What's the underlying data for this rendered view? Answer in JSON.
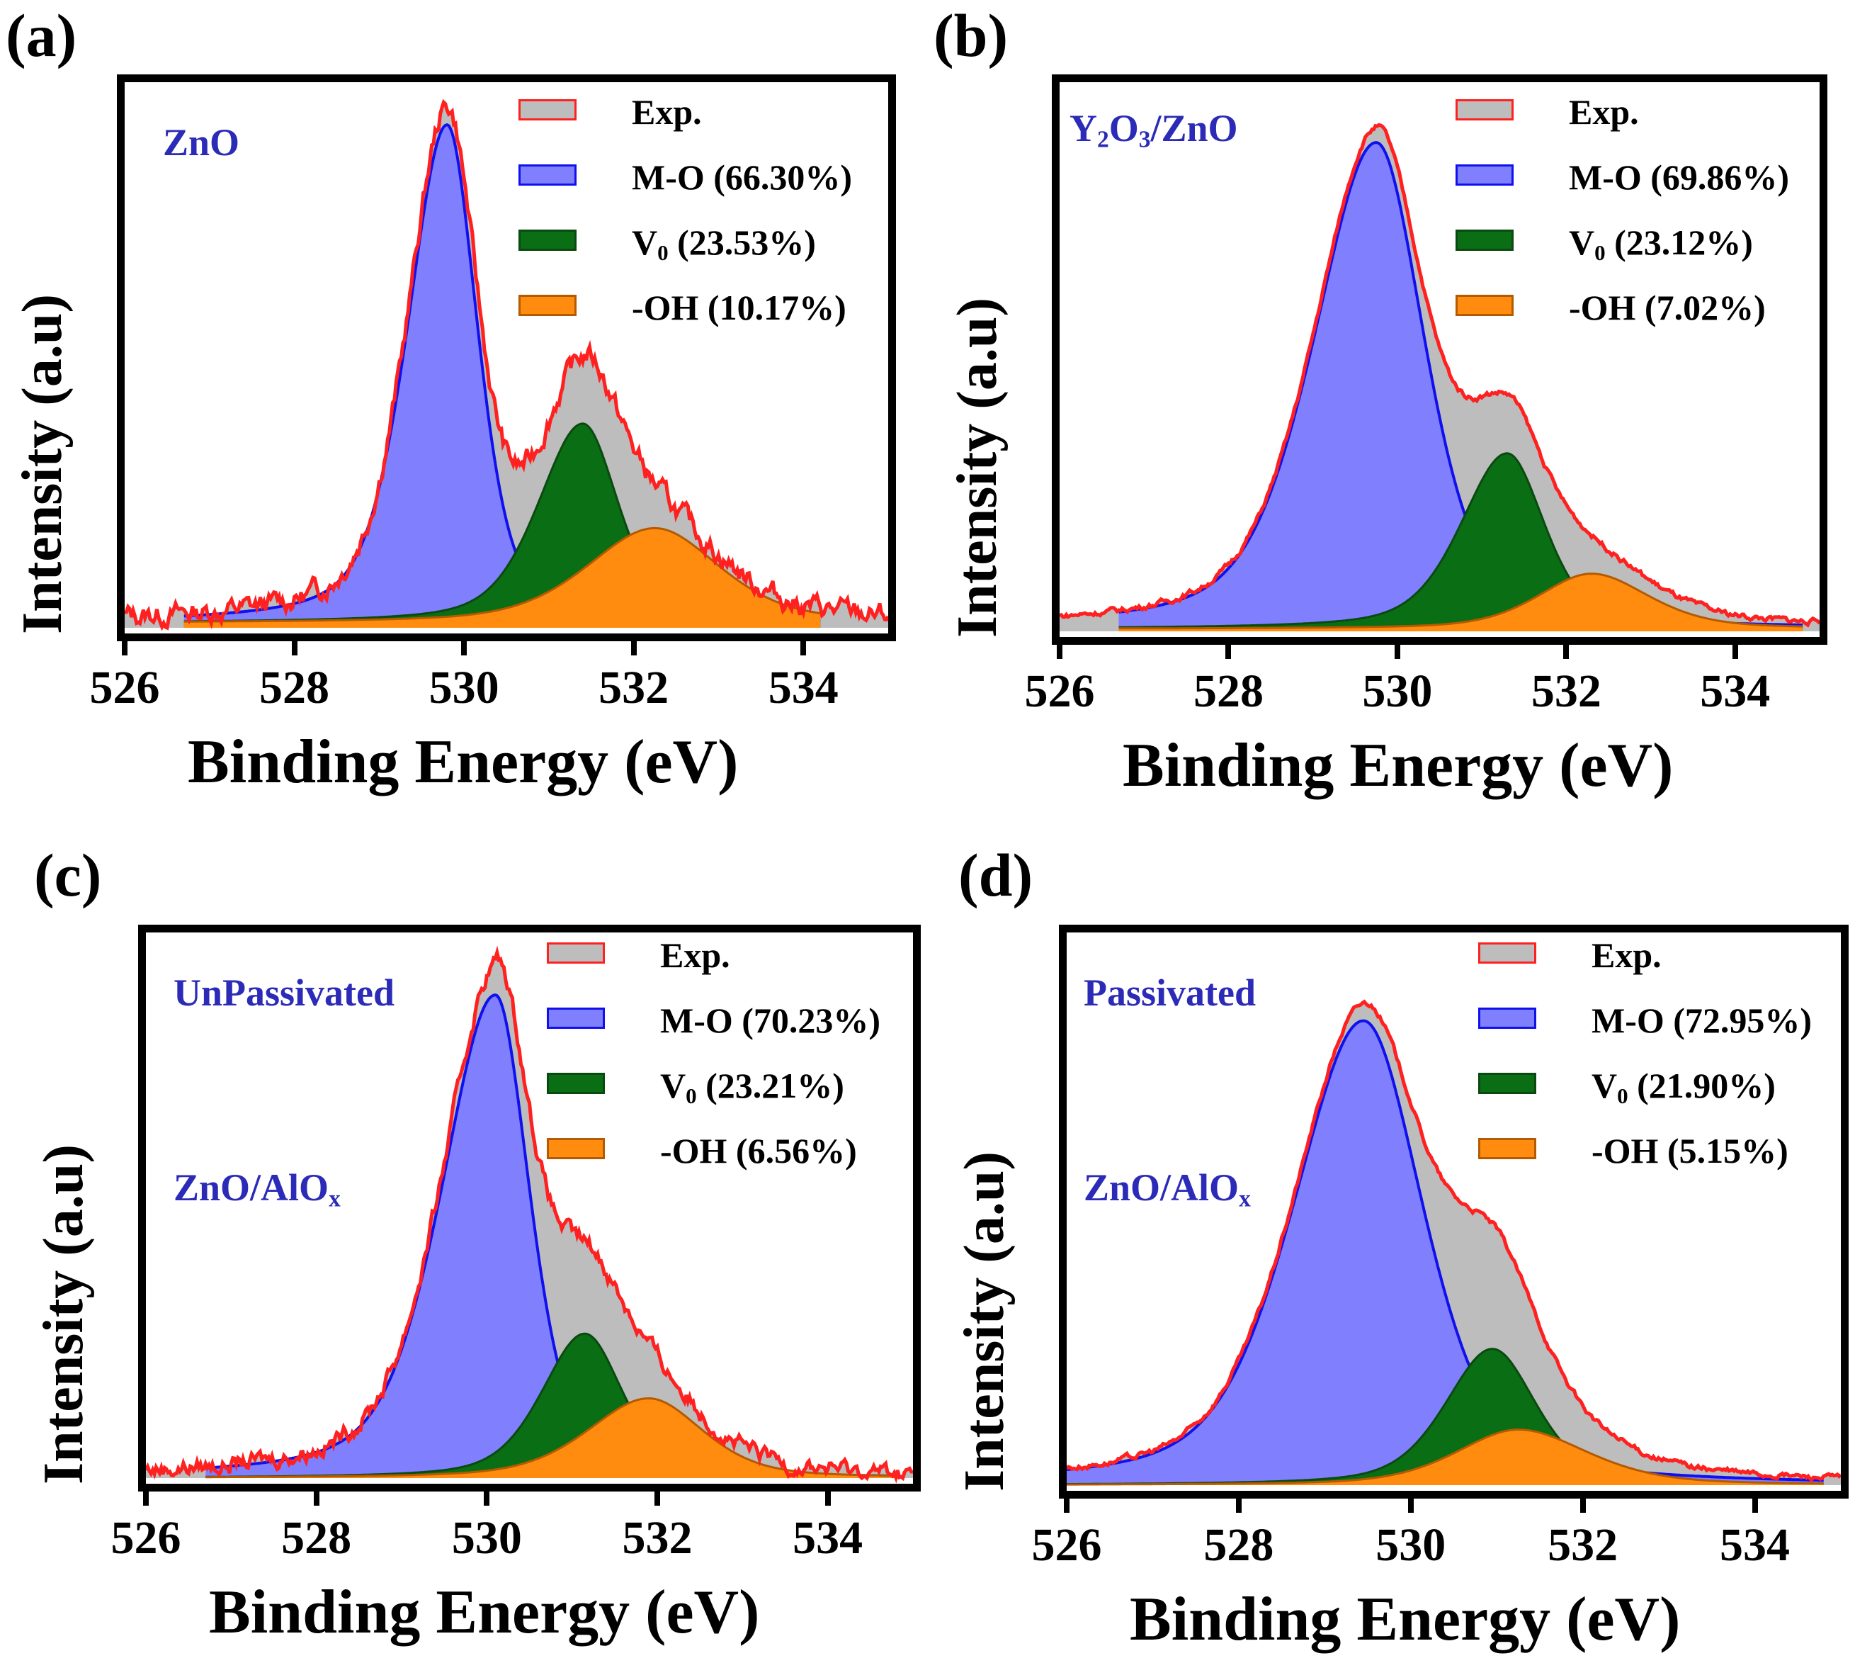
{
  "figure": {
    "x_axis_label": "Binding Energy (eV)",
    "y_axis_label": "Intensity (a.u)",
    "x_ticks": [
      "526",
      "528",
      "530",
      "532",
      "534"
    ],
    "legend_labels": [
      "Exp.",
      "M-O",
      "V",
      "-OH"
    ],
    "legend_colors": {
      "exp_fill": "#bdbdbd",
      "exp_line": "#ff2020",
      "mo_fill": "#8080ff",
      "mo_line": "#1010ee",
      "vo_fill": "#0a6e14",
      "vo_line": "#0a4a10",
      "oh_fill": "#ff8c0e",
      "oh_line": "#b55a00",
      "sample_label": "#2b2bb8"
    }
  },
  "panels": [
    {
      "letter": "(a)",
      "sample_main": "ZnO",
      "sample_extra": "",
      "legend": {
        "exp": "Exp.",
        "mo": "M-O (66.30%)",
        "vo_sym": "V",
        "vo_sub": "0",
        "vo_pct": "(23.53%)",
        "oh": "-OH (10.17%)"
      }
    },
    {
      "letter": "(b)",
      "sample_main": "Y2O3/ZnO",
      "sample_extra": "",
      "legend": {
        "exp": "Exp.",
        "mo": "M-O (69.86%)",
        "vo_sym": "V",
        "vo_sub": "0",
        "vo_pct": "(23.12%)",
        "oh": "-OH (7.02%)"
      }
    },
    {
      "letter": "(c)",
      "sample_main": "UnPassivated",
      "sample_extra": "ZnO/AlOx",
      "legend": {
        "exp": "Exp.",
        "mo": "M-O (70.23%)",
        "vo_sym": "V",
        "vo_sub": "0",
        "vo_pct": "(23.21%)",
        "oh": "-OH (6.56%)"
      }
    },
    {
      "letter": "(d)",
      "sample_main": "Passivated",
      "sample_extra": "ZnO/AlOx",
      "legend": {
        "exp": "Exp.",
        "mo": "M-O (72.95%)",
        "vo_sym": "V",
        "vo_sub": "0",
        "vo_pct": "(21.90%)",
        "oh": "-OH (5.15%)"
      }
    }
  ],
  "chart_data": [
    {
      "type": "area",
      "panel": "(a)",
      "title": "ZnO",
      "xlabel": "Binding Energy (eV)",
      "ylabel": "Intensity (a.u)",
      "xlim": [
        526,
        535
      ],
      "ylim": [
        0,
        1.05
      ],
      "series": [
        {
          "name": "M-O",
          "percent": 66.3,
          "center": 529.8,
          "height": 1.0,
          "fwhm_left": 1.1,
          "fwhm_right": 0.85,
          "x_start": 526.7,
          "x_end": 534.2
        },
        {
          "name": "V0",
          "percent": 23.53,
          "center": 531.4,
          "height": 0.4,
          "fwhm_left": 1.25,
          "fwhm_right": 1.0,
          "x_start": 526.7,
          "x_end": 534.2
        },
        {
          "name": "-OH",
          "percent": 10.17,
          "center": 532.25,
          "height": 0.19,
          "fwhm_left": 1.9,
          "fwhm_right": 1.8,
          "x_start": 526.7,
          "x_end": 534.2
        }
      ],
      "exp_noise": 0.015,
      "baseline": 0.01
    },
    {
      "type": "area",
      "panel": "(b)",
      "title": "Y2O3/ZnO",
      "xlabel": "Binding Energy (eV)",
      "ylabel": "Intensity (a.u)",
      "xlim": [
        526,
        535
      ],
      "ylim": [
        0,
        1.05
      ],
      "series": [
        {
          "name": "M-O",
          "percent": 69.86,
          "center": 529.75,
          "height": 0.97,
          "fwhm_left": 1.75,
          "fwhm_right": 1.35,
          "x_start": 526.7,
          "x_end": 534.8
        },
        {
          "name": "V0",
          "percent": 23.12,
          "center": 531.3,
          "height": 0.35,
          "fwhm_left": 1.3,
          "fwhm_right": 1.05,
          "x_start": 526.7,
          "x_end": 534.8
        },
        {
          "name": "-OH",
          "percent": 7.02,
          "center": 532.3,
          "height": 0.11,
          "fwhm_left": 1.5,
          "fwhm_right": 1.6,
          "x_start": 526.7,
          "x_end": 534.8
        }
      ],
      "exp_noise": 0.004,
      "baseline": 0.005
    },
    {
      "type": "area",
      "panel": "(c)",
      "title": "UnPassivated ZnO/AlOx",
      "xlabel": "Binding Energy (eV)",
      "ylabel": "Intensity (a.u)",
      "xlim": [
        526,
        535
      ],
      "ylim": [
        0,
        1.05
      ],
      "series": [
        {
          "name": "M-O",
          "percent": 70.23,
          "center": 530.1,
          "height": 0.97,
          "fwhm_left": 1.5,
          "fwhm_right": 0.95,
          "x_start": 526.7,
          "x_end": 534.8
        },
        {
          "name": "V0",
          "percent": 23.21,
          "center": 531.15,
          "height": 0.29,
          "fwhm_left": 1.2,
          "fwhm_right": 1.05,
          "x_start": 526.7,
          "x_end": 534.8
        },
        {
          "name": "-OH",
          "percent": 6.56,
          "center": 531.9,
          "height": 0.16,
          "fwhm_left": 1.7,
          "fwhm_right": 1.5,
          "x_start": 526.7,
          "x_end": 534.8
        }
      ],
      "exp_noise": 0.012,
      "baseline": 0.0
    },
    {
      "type": "area",
      "panel": "(d)",
      "title": "Passivated ZnO/AlOx",
      "xlabel": "Binding Energy (eV)",
      "ylabel": "Intensity (a.u)",
      "xlim": [
        526,
        535
      ],
      "ylim": [
        0,
        1.05
      ],
      "series": [
        {
          "name": "M-O",
          "percent": 72.95,
          "center": 529.45,
          "height": 0.92,
          "fwhm_left": 1.95,
          "fwhm_right": 1.65,
          "x_start": 526.0,
          "x_end": 534.8
        },
        {
          "name": "V0",
          "percent": 21.9,
          "center": 530.95,
          "height": 0.27,
          "fwhm_left": 1.3,
          "fwhm_right": 1.2,
          "x_start": 526.0,
          "x_end": 534.8
        },
        {
          "name": "-OH",
          "percent": 5.15,
          "center": 531.25,
          "height": 0.11,
          "fwhm_left": 1.7,
          "fwhm_right": 1.9,
          "x_start": 526.0,
          "x_end": 534.8
        }
      ],
      "exp_noise": 0.004,
      "baseline": 0.0
    }
  ]
}
